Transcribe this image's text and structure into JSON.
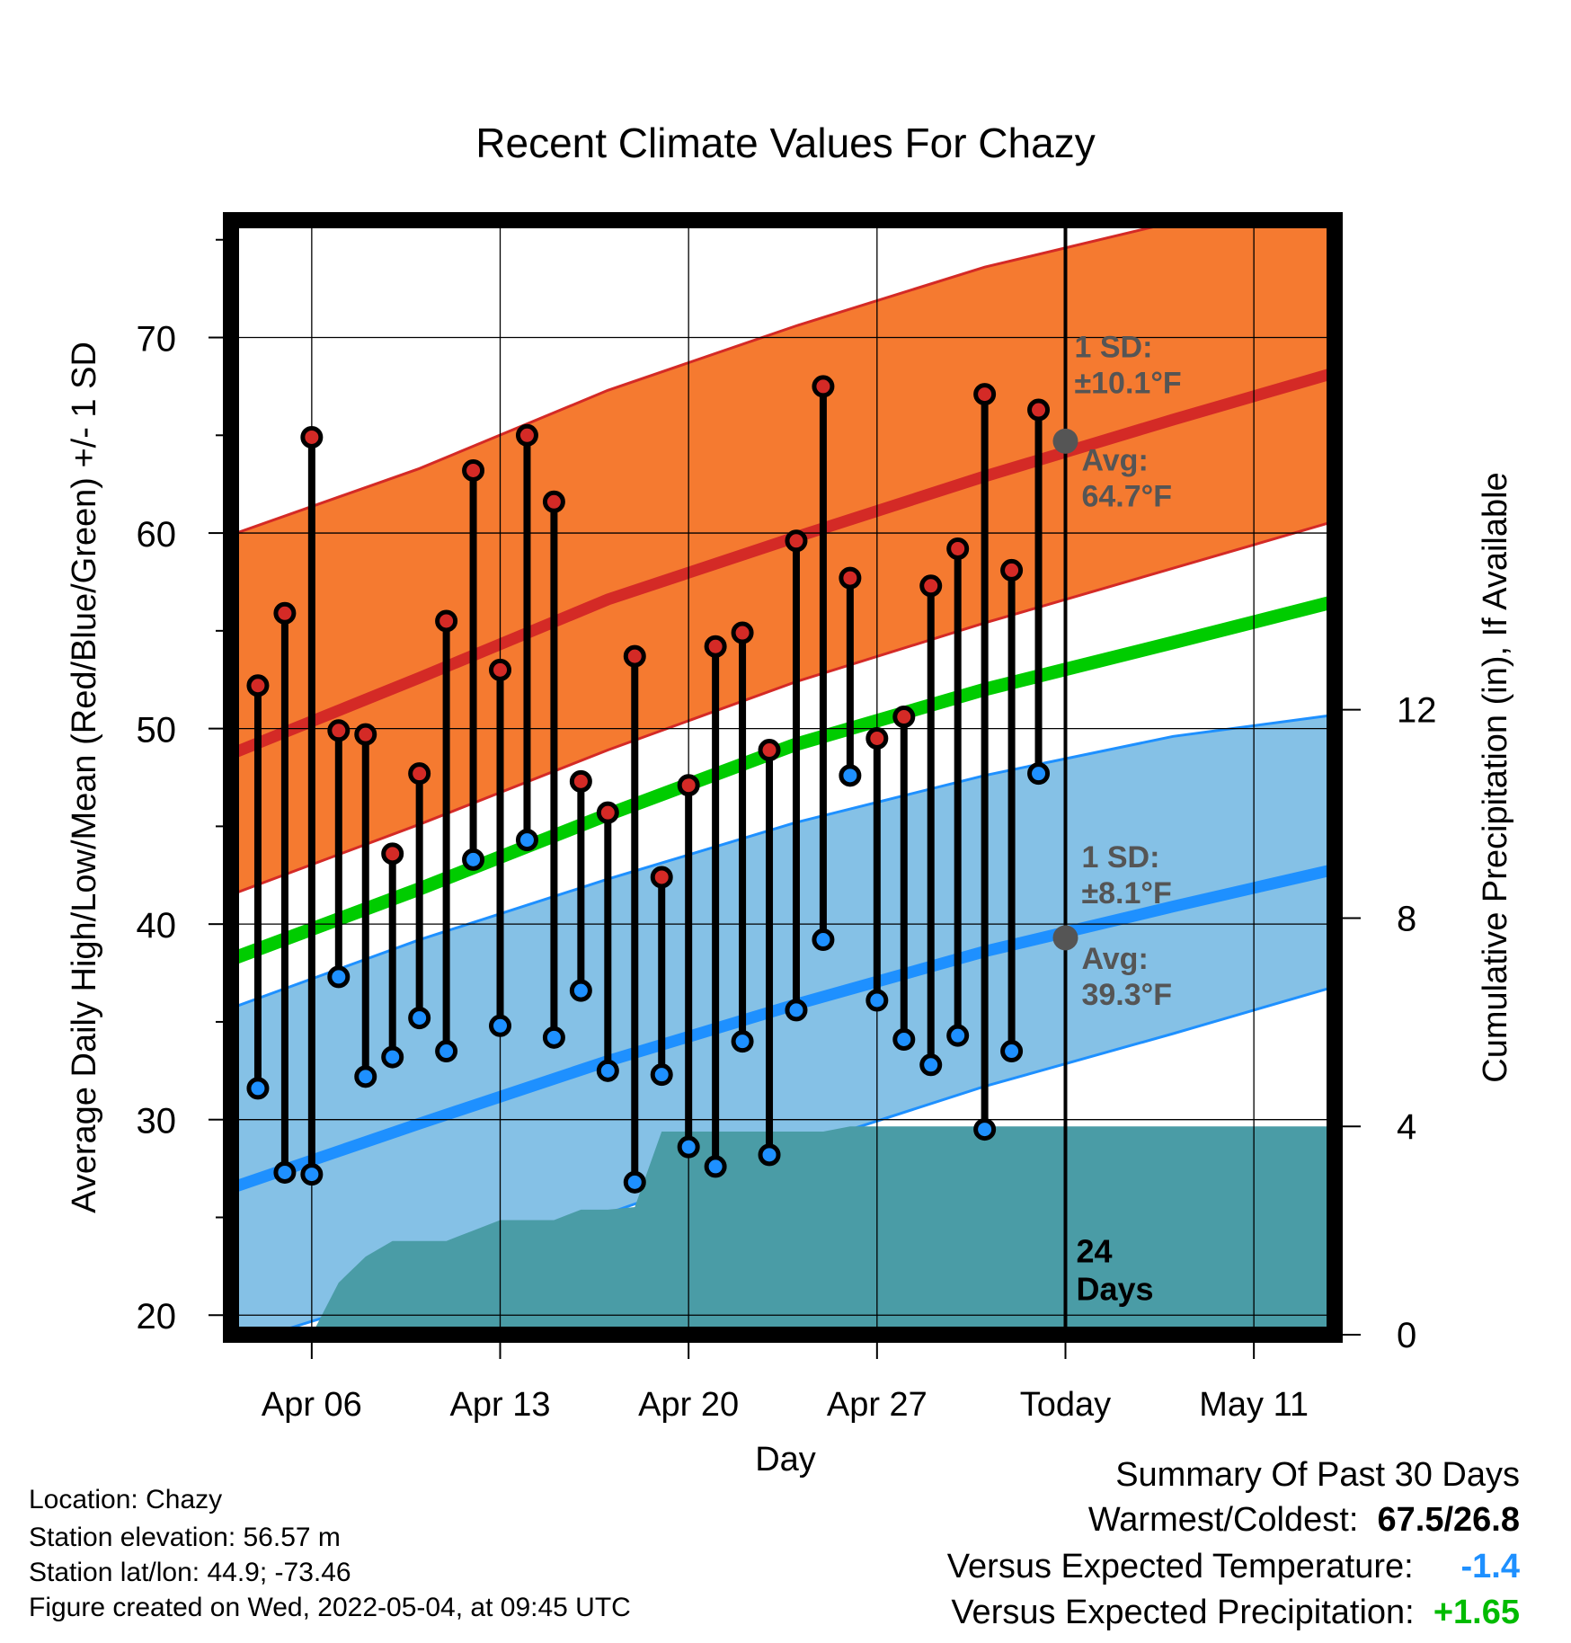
{
  "info": {
    "location": "Location: Chazy",
    "elevation": "Station elevation: 56.57 m",
    "latlon": "Station lat/lon: 44.9; -73.46",
    "created": "Figure created on Wed, 2022-05-04, at 09:45 UTC"
  },
  "summary": {
    "heading": "Summary Of Past 30 Days",
    "warm_cold_label": "Warmest/Coldest:",
    "warm_cold_value": "67.5/26.8",
    "temp_label": "Versus Expected Temperature:",
    "temp_value": "-1.4",
    "precip_label": "Versus Expected Precipitation:",
    "precip_value": "+1.65",
    "temp_value_color": "#1e90ff",
    "precip_value_color": "#00bb00"
  },
  "colors": {
    "high_band": "#f57a30",
    "high_line": "#d42a26",
    "low_band": "#85c1e6",
    "low_line": "#1e90ff",
    "mean_line": "#00cc00",
    "precip": "#4a9ca6",
    "annotation": "#555555"
  },
  "chart_data": {
    "type": "line",
    "title": "Recent Climate Values For Chazy",
    "xlabel": "Day",
    "ylabel_left": "Average Daily High/Low/Mean (Red/Blue/Green) +/- 1 SD",
    "ylabel_right": "Cumulative Precipitation (in), If Available",
    "x_ticks": [
      "Apr 06",
      "Apr 13",
      "Apr 20",
      "Apr 27",
      "Today",
      "May 11"
    ],
    "xlim": [
      "Apr 03",
      "May 14"
    ],
    "ylim": [
      19,
      76
    ],
    "y_ticks": [
      20,
      30,
      40,
      50,
      60,
      70
    ],
    "y2lim": [
      0,
      21.4
    ],
    "y2_ticks": [
      0,
      4,
      8,
      12
    ],
    "dates": [
      "Apr 04",
      "Apr 05",
      "Apr 06",
      "Apr 07",
      "Apr 08",
      "Apr 09",
      "Apr 10",
      "Apr 11",
      "Apr 12",
      "Apr 13",
      "Apr 14",
      "Apr 15",
      "Apr 16",
      "Apr 17",
      "Apr 18",
      "Apr 19",
      "Apr 20",
      "Apr 21",
      "Apr 22",
      "Apr 23",
      "Apr 24",
      "Apr 25",
      "Apr 26",
      "Apr 27",
      "Apr 28",
      "Apr 29",
      "Apr 30",
      "May 01",
      "May 02",
      "May 03"
    ],
    "observed_high": [
      52.2,
      55.9,
      64.9,
      49.9,
      49.7,
      43.6,
      47.7,
      55.5,
      63.2,
      53.0,
      65.0,
      61.6,
      47.3,
      45.7,
      53.7,
      42.4,
      47.1,
      54.2,
      54.9,
      48.9,
      59.6,
      67.5,
      57.7,
      49.5,
      50.6,
      57.3,
      59.2,
      67.1,
      58.1,
      66.3
    ],
    "observed_low": [
      31.6,
      27.3,
      27.2,
      37.3,
      32.2,
      33.2,
      35.2,
      33.5,
      43.3,
      34.8,
      44.3,
      34.2,
      36.6,
      32.5,
      26.8,
      32.3,
      28.6,
      27.6,
      34.0,
      28.2,
      35.6,
      39.2,
      47.6,
      36.1,
      34.1,
      32.8,
      34.3,
      29.5,
      33.5,
      47.7
    ],
    "normal": {
      "dates": [
        "Apr 03",
        "Apr 10",
        "Apr 17",
        "Apr 24",
        "May 01",
        "May 08",
        "May 14"
      ],
      "high_mean": [
        48.7,
        52.6,
        56.6,
        59.8,
        62.9,
        65.8,
        68.2
      ],
      "high_upper": [
        59.9,
        63.3,
        67.3,
        70.6,
        73.6,
        75.9,
        78.3
      ],
      "high_lower": [
        41.5,
        45.1,
        48.9,
        52.4,
        55.4,
        58.2,
        60.6
      ],
      "mean": [
        38.2,
        41.8,
        45.6,
        49.2,
        52.0,
        54.4,
        56.5
      ],
      "low_mean": [
        26.5,
        29.8,
        33.0,
        35.9,
        38.6,
        40.9,
        42.8
      ],
      "low_upper": [
        35.7,
        39.2,
        42.3,
        45.2,
        47.6,
        49.6,
        50.7
      ],
      "low_lower": [
        18.4,
        21.4,
        25.2,
        28.6,
        31.7,
        34.4,
        36.8
      ]
    },
    "precip_cumulative": {
      "dates": [
        "Apr 03",
        "Apr 04",
        "Apr 05",
        "Apr 06",
        "Apr 07",
        "Apr 08",
        "Apr 09",
        "Apr 10",
        "Apr 11",
        "Apr 12",
        "Apr 13",
        "Apr 14",
        "Apr 15",
        "Apr 16",
        "Apr 17",
        "Apr 18",
        "Apr 19",
        "Apr 20",
        "Apr 21",
        "Apr 22",
        "Apr 23",
        "Apr 24",
        "Apr 25",
        "Apr 26",
        "Apr 27",
        "Apr 28",
        "Apr 29",
        "Apr 30",
        "May 01",
        "May 02",
        "May 03",
        "May 04",
        "May 05",
        "May 06",
        "May 07",
        "May 08",
        "May 09",
        "May 10",
        "May 11",
        "May 12",
        "May 13",
        "May 14"
      ],
      "values": [
        0,
        0,
        0,
        0,
        1.0,
        1.5,
        1.8,
        1.8,
        1.8,
        2.0,
        2.2,
        2.2,
        2.2,
        2.4,
        2.4,
        2.45,
        3.9,
        3.9,
        3.9,
        3.9,
        3.9,
        3.9,
        3.9,
        4.0,
        4.0,
        4.0,
        4.0,
        4.0,
        4.0,
        4.0,
        4.0,
        4.0,
        4.0,
        4.0,
        4.0,
        4.0,
        4.0,
        4.0,
        4.0,
        4.0,
        4.0,
        4.0
      ]
    },
    "annotations": {
      "high_sd": "1 SD:\n±10.1°F",
      "high_avg": "Avg:\n64.7°F",
      "low_sd": "1 SD:\n±8.1°F",
      "low_avg": "Avg:\n39.3°F",
      "today_high_avg": 64.7,
      "today_low_avg": 39.3,
      "days_label": "24\nDays"
    },
    "today": "May 04",
    "grid": true,
    "legend": "none"
  }
}
